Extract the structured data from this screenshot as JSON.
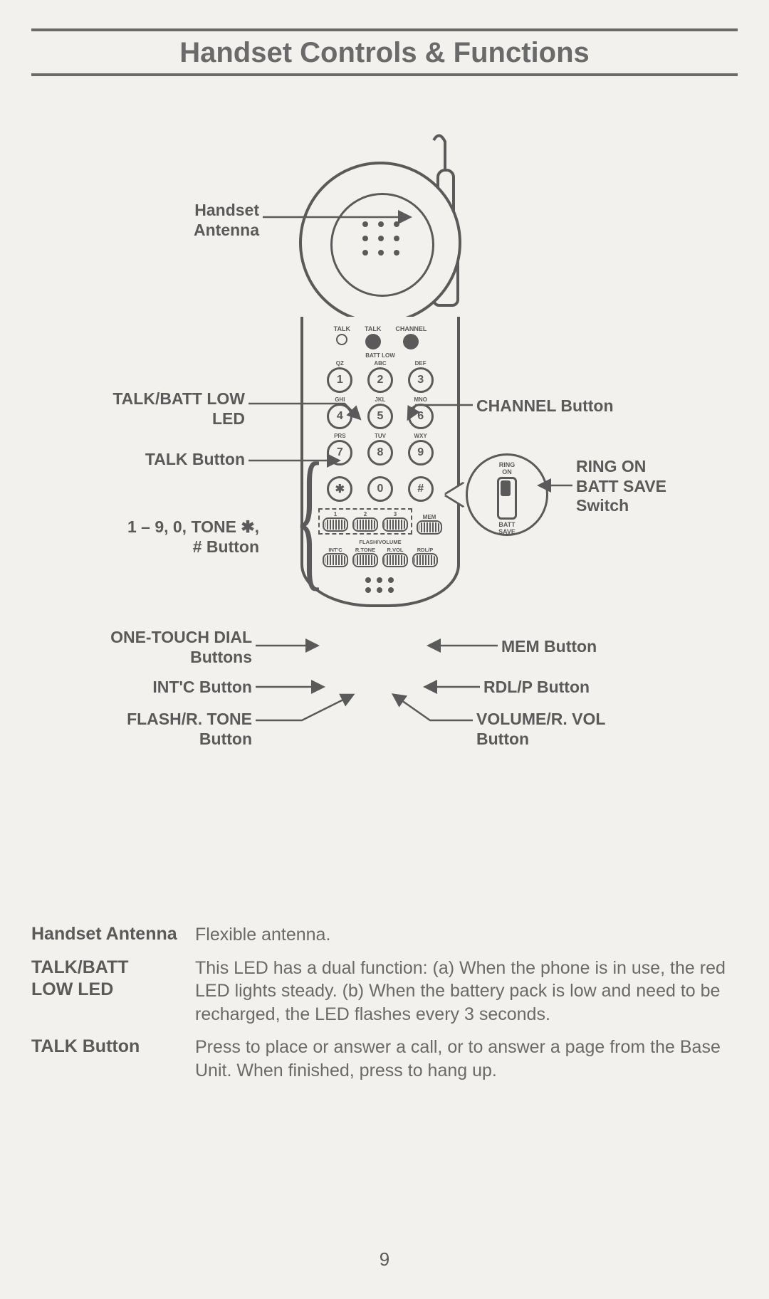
{
  "title": "Handset Controls & Functions",
  "page_number": "9",
  "colors": {
    "background": "#f3f1ed",
    "ink": "#5a5a5a"
  },
  "labels": {
    "antenna": "Handset\nAntenna",
    "talk_batt_low_led": "TALK/BATT LOW\nLED",
    "talk_button": "TALK Button",
    "keypad": "1 – 9, 0, TONE ✱,\n# Button",
    "one_touch": "ONE-TOUCH DIAL\nButtons",
    "intc": "INT'C Button",
    "flash_rtone": "FLASH/R. TONE\nButton",
    "channel": "CHANNEL Button",
    "ring_switch": "RING ON\nBATT SAVE\nSwitch",
    "mem": "MEM Button",
    "rdlp": "RDL/P Button",
    "vol": "VOLUME/R. VOL\nButton"
  },
  "handset": {
    "top_row": {
      "left": "TALK",
      "mid": "TALK",
      "right": "CHANNEL"
    },
    "batt_low": "BATT LOW",
    "keypad_letters": [
      "QZ",
      "ABC",
      "DEF",
      "GHI",
      "JKL",
      "MNO",
      "PRS",
      "TUV",
      "WXY",
      "",
      "",
      ""
    ],
    "keypad_keys": [
      "1",
      "2",
      "3",
      "4",
      "5",
      "6",
      "7",
      "8",
      "9",
      "✱",
      "0",
      "#"
    ],
    "otd_nums": [
      "1",
      "2",
      "3"
    ],
    "otd_mem": "MEM",
    "flashvol_label": "FLASH/VOLUME",
    "fn_btns": [
      "INT'C",
      "R.TONE",
      "R.VOL",
      "RDL/P"
    ]
  },
  "side_switch": {
    "top": "RING\nON",
    "bottom": "BATT\nSAVE"
  },
  "descriptions": [
    {
      "term": "Handset Antenna",
      "def": "Flexible antenna."
    },
    {
      "term": "TALK/BATT\nLOW LED",
      "def": "This LED has a dual function: (a) When the phone is in use, the red LED lights steady. (b) When the battery pack is low and need to be recharged, the LED flashes every 3 seconds."
    },
    {
      "term": "TALK Button",
      "def": "Press to place or answer a call, or to answer a page from the Base Unit. When finished, press to hang up."
    }
  ]
}
